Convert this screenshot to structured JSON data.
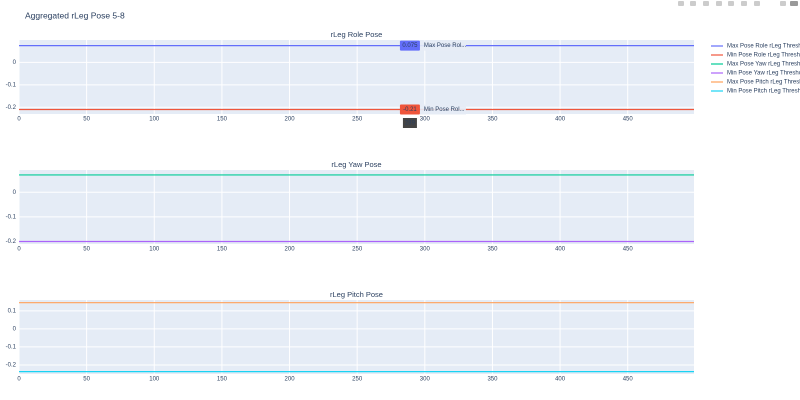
{
  "title": "Aggregated rLeg Pose 5-8",
  "chart_data": [
    {
      "type": "line",
      "title": "rLeg Role Pose",
      "x": [
        0,
        499
      ],
      "series": [
        {
          "name": "Max Pose Role rLeg Threshold",
          "color": "#636efa",
          "values": [
            0.075,
            0.075
          ]
        },
        {
          "name": "Min Pose Role rLeg Threshold",
          "color": "#ef553b",
          "values": [
            -0.21,
            -0.21
          ]
        }
      ],
      "xlim": [
        0,
        499
      ],
      "xticks": [
        0,
        50,
        100,
        150,
        200,
        250,
        300,
        350,
        400,
        450
      ],
      "ylim": [
        -0.23,
        0.1
      ],
      "yticks": [
        -0.2,
        -0.1,
        0
      ],
      "grid": true,
      "hover": {
        "x": 289,
        "values": [
          0.075,
          -0.21
        ],
        "names": [
          "Max Pose Rol...",
          "Min Pose Rol..."
        ]
      }
    },
    {
      "type": "line",
      "title": "rLeg Yaw Pose",
      "x": [
        0,
        499
      ],
      "series": [
        {
          "name": "Max Pose Yaw rLeg Threshold",
          "color": "#00cc96",
          "values": [
            0.07,
            0.07
          ]
        },
        {
          "name": "Min Pose Yaw rLeg Threshold",
          "color": "#ab63fa",
          "values": [
            -0.2,
            -0.2
          ]
        }
      ],
      "xlim": [
        0,
        499
      ],
      "xticks": [
        0,
        50,
        100,
        150,
        200,
        250,
        300,
        350,
        400,
        450
      ],
      "ylim": [
        -0.21,
        0.09
      ],
      "yticks": [
        -0.2,
        -0.1,
        0
      ],
      "grid": true
    },
    {
      "type": "line",
      "title": "rLeg Pitch Pose",
      "x": [
        0,
        499
      ],
      "series": [
        {
          "name": "Max Pose Pitch rLeg Threshold",
          "color": "#ffa15a",
          "values": [
            0.145,
            0.145
          ]
        },
        {
          "name": "Min Pose Pitch rLeg Threshold",
          "color": "#19d3f3",
          "values": [
            -0.237,
            -0.237
          ]
        }
      ],
      "xlim": [
        0,
        499
      ],
      "xticks": [
        0,
        50,
        100,
        150,
        200,
        250,
        300,
        350,
        400,
        450
      ],
      "ylim": [
        -0.25,
        0.16
      ],
      "yticks": [
        -0.2,
        -0.1,
        0,
        0.1
      ],
      "grid": true
    }
  ]
}
